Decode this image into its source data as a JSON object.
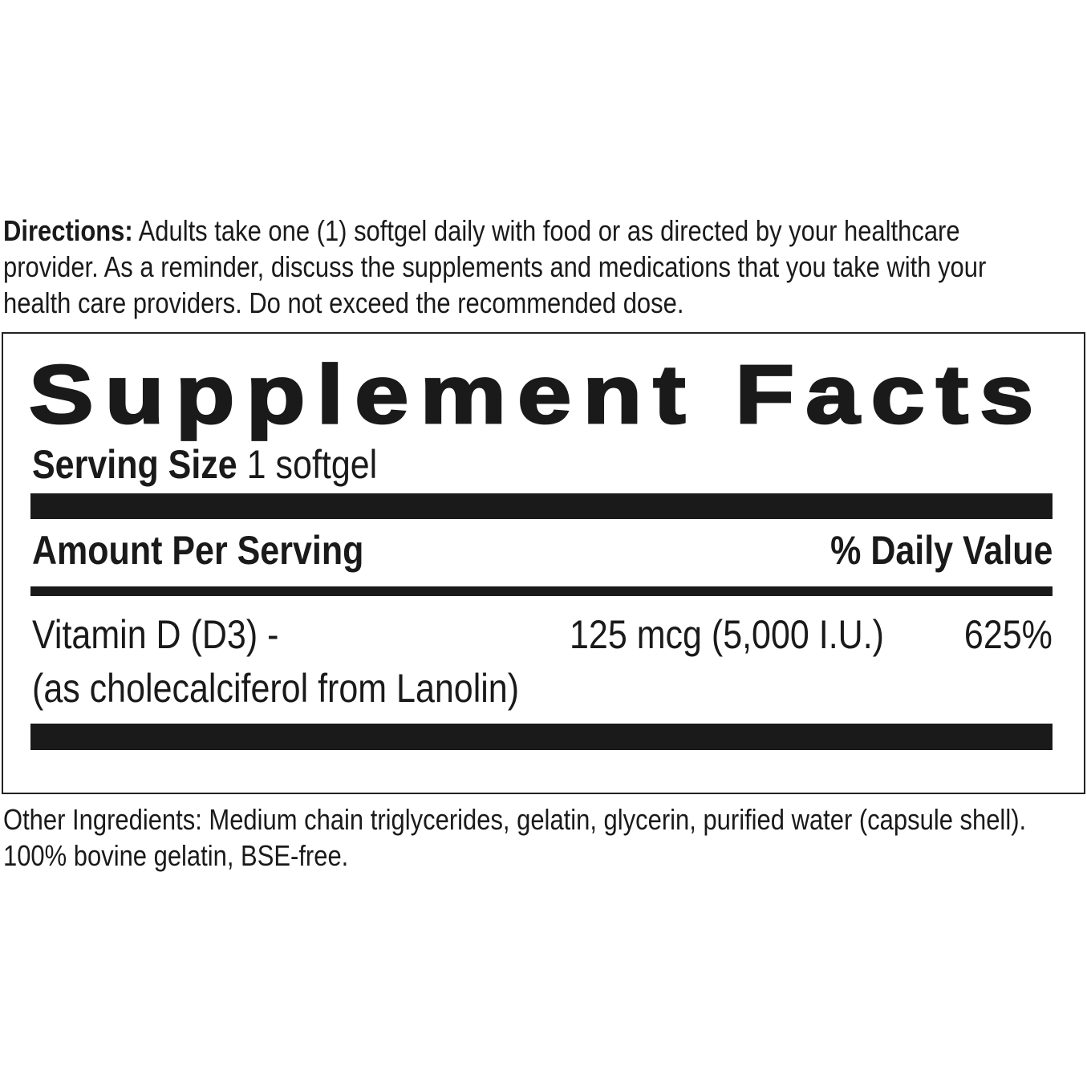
{
  "directions": {
    "label": "Directions:",
    "lines": [
      "Adults take one (1) softgel daily with food or as directed by your healthcare",
      "provider.  As a reminder, discuss the supplements and medications that you take with your",
      "health care providers. Do not exceed the recommended dose."
    ]
  },
  "facts": {
    "title": "Supplement Facts",
    "serving_label": "Serving Size",
    "serving_value": "1 softgel",
    "amount_header": "Amount Per Serving",
    "dv_header": "% Daily Value",
    "ingredients": [
      {
        "name_line1": "Vitamin D (D3) -",
        "name_line2": "(as cholecalciferol from Lanolin)",
        "amount": "125 mcg (5,000 I.U.)",
        "dv": "625%"
      }
    ]
  },
  "other_ingredients": [
    "Other Ingredients: Medium chain triglycerides, gelatin, glycerin, purified water (capsule shell).",
    "100% bovine gelatin, BSE-free."
  ]
}
